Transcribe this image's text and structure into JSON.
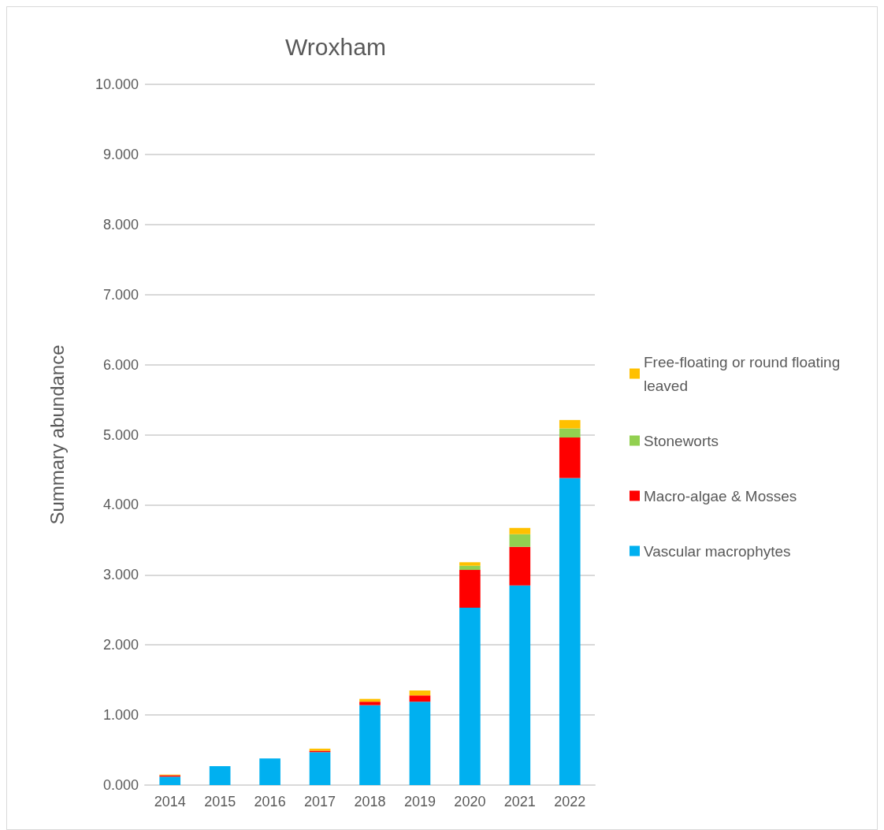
{
  "chart_data": {
    "type": "bar",
    "stacked": true,
    "title": "Wroxham",
    "ylabel": "Summary abundance",
    "categories": [
      "2014",
      "2015",
      "2016",
      "2017",
      "2018",
      "2019",
      "2020",
      "2021",
      "2022"
    ],
    "series": [
      {
        "name": "Vascular macrophytes",
        "color": "#00b0f0",
        "values": [
          0.12,
          0.27,
          0.38,
          0.47,
          1.14,
          1.19,
          2.53,
          2.85,
          4.38
        ]
      },
      {
        "name": "Macro-algae & Mosses",
        "color": "#ff0000",
        "values": [
          0.02,
          0,
          0,
          0.02,
          0.05,
          0.09,
          0.54,
          0.55,
          0.58
        ]
      },
      {
        "name": "Stoneworts",
        "color": "#92d050",
        "values": [
          0,
          0,
          0,
          0,
          0,
          0,
          0.06,
          0.18,
          0.13
        ]
      },
      {
        "name": "Free-floating or round floating leaved",
        "color": "#ffc000",
        "values": [
          0.01,
          0,
          0,
          0.03,
          0.04,
          0.07,
          0.05,
          0.09,
          0.12
        ]
      }
    ],
    "ylim": [
      0,
      10
    ],
    "yticks": [
      {
        "value": 0,
        "label": "0.000"
      },
      {
        "value": 1,
        "label": "1.000"
      },
      {
        "value": 2,
        "label": "2.000"
      },
      {
        "value": 3,
        "label": "3.000"
      },
      {
        "value": 4,
        "label": "4.000"
      },
      {
        "value": 5,
        "label": "5.000"
      },
      {
        "value": 6,
        "label": "6.000"
      },
      {
        "value": 7,
        "label": "7.000"
      },
      {
        "value": 8,
        "label": "8.000"
      },
      {
        "value": 9,
        "label": "9.000"
      },
      {
        "value": 10,
        "label": "10.000"
      }
    ],
    "grid": "y",
    "legend": "right"
  }
}
